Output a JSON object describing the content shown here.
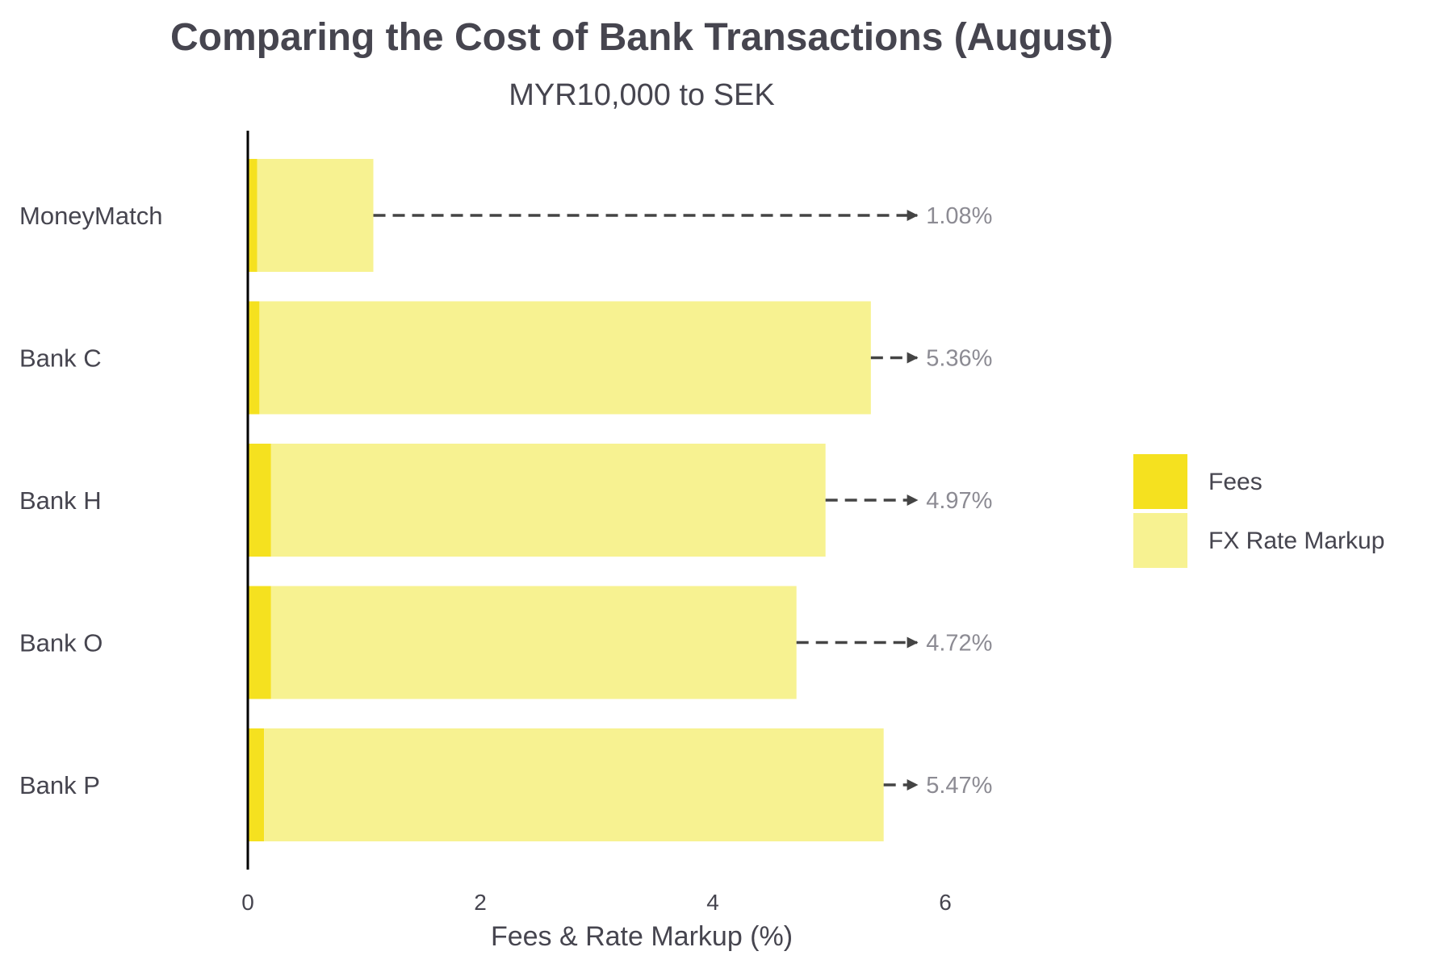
{
  "chart_data": {
    "type": "bar",
    "orientation": "horizontal",
    "stacked": true,
    "title": "Comparing the Cost of Bank Transactions (August)",
    "subtitle": "MYR10,000 to SEK",
    "xlabel": "Fees & Rate Markup (%)",
    "ylabel": "",
    "xlim": [
      0,
      6
    ],
    "xticks": [
      "0",
      "2",
      "4",
      "6"
    ],
    "grid": false,
    "legend_position": "right",
    "categories": [
      "MoneyMatch",
      "Bank C",
      "Bank H",
      "Bank O",
      "Bank P"
    ],
    "series": [
      {
        "name": "Fees",
        "color": "#f5e11f",
        "values": [
          0.08,
          0.1,
          0.2,
          0.2,
          0.14
        ]
      },
      {
        "name": "FX Rate Markup",
        "color": "#f7f291",
        "values": [
          1.0,
          5.26,
          4.77,
          4.52,
          5.33
        ]
      }
    ],
    "totals": [
      "1.08%",
      "5.36%",
      "4.97%",
      "4.72%",
      "5.47%"
    ],
    "total_values": [
      1.08,
      5.36,
      4.97,
      4.72,
      5.47
    ],
    "label_anchor_x": 5.8
  }
}
